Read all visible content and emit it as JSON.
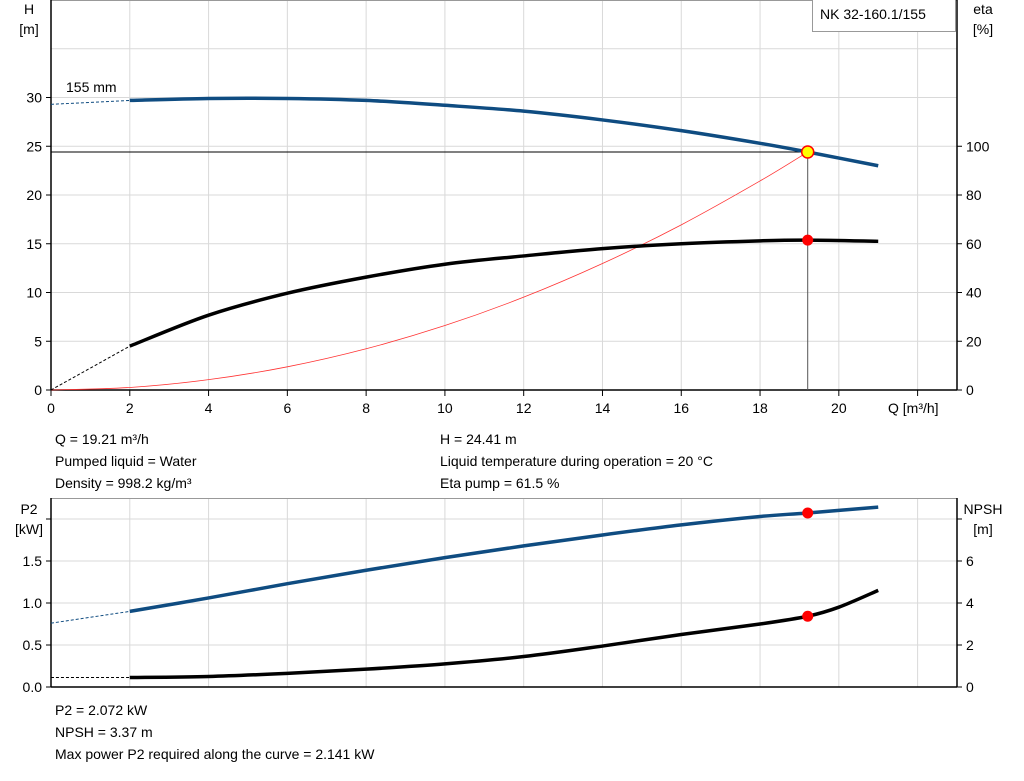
{
  "colors": {
    "head": "#0f4c81",
    "efficiency": "#000000",
    "system": "#ff3333",
    "power": "#0f4c81",
    "npsh": "#000000",
    "marker": "#ff0000",
    "op_marker_fill": "#ffff00",
    "grid": "#d9d9d9"
  },
  "chart_data": [
    {
      "type": "line",
      "legend": "NK 32-160.1/155",
      "curve_label": "155 mm",
      "xlabel": "Q [m³/h]",
      "ylabel_left": [
        "H",
        "[m]"
      ],
      "ylabel_right": [
        "eta",
        "[%]"
      ],
      "xlim": [
        0,
        23
      ],
      "ylim_left": [
        0,
        40
      ],
      "ylim_right": [
        0,
        160
      ],
      "x_ticks": [
        "0",
        "2",
        "4",
        "6",
        "8",
        "10",
        "12",
        "14",
        "16",
        "18",
        "20"
      ],
      "y_ticks_left": [
        "0",
        "5",
        "10",
        "15",
        "20",
        "25",
        "30"
      ],
      "y_ticks_right": [
        "0",
        "20",
        "40",
        "60",
        "80",
        "100"
      ],
      "grid": true,
      "series": [
        {
          "key": "head",
          "axis": "left",
          "dashed_to": 2,
          "x": [
            0,
            2,
            4,
            6,
            8,
            10,
            12,
            14,
            16,
            18,
            19.21,
            21
          ],
          "y": [
            29.3,
            29.7,
            29.9,
            29.9,
            29.7,
            29.2,
            28.6,
            27.7,
            26.6,
            25.3,
            24.41,
            23.0
          ]
        },
        {
          "key": "efficiency",
          "axis": "right",
          "dashed_to": 2,
          "x": [
            0,
            2,
            4,
            6,
            8,
            10,
            12,
            14,
            16,
            18,
            19.21,
            21
          ],
          "y": [
            0,
            18,
            30.7,
            39.7,
            46.3,
            51.6,
            55,
            58,
            60,
            61.2,
            61.5,
            61
          ]
        },
        {
          "key": "system",
          "axis": "left",
          "x": [
            0,
            2,
            4,
            6,
            8,
            10,
            12,
            14,
            16,
            18,
            19.21
          ],
          "y": [
            0,
            0.26,
            1.06,
            2.38,
            4.23,
            6.61,
            9.52,
            12.97,
            16.94,
            21.44,
            24.41
          ]
        }
      ],
      "operating_point": {
        "Q": 19.21,
        "H": 24.41,
        "eta": 61.5
      }
    },
    {
      "type": "line",
      "ylabel_left": [
        "P2",
        "[kW]"
      ],
      "ylabel_right": [
        "NPSH",
        "[m]"
      ],
      "xlim": [
        0,
        23
      ],
      "ylim_left": [
        0,
        2.25
      ],
      "ylim_right": [
        0,
        9
      ],
      "y_ticks_left": [
        "0.0",
        "0.5",
        "1.0",
        "1.5"
      ],
      "y_ticks_right": [
        "0",
        "2",
        "4",
        "6"
      ],
      "grid": true,
      "series": [
        {
          "key": "power",
          "axis": "left",
          "dashed_to": 2,
          "x": [
            0,
            2,
            4,
            6,
            8,
            10,
            12,
            14,
            16,
            18,
            19.21,
            21
          ],
          "y": [
            0.76,
            0.9,
            1.06,
            1.23,
            1.39,
            1.54,
            1.68,
            1.81,
            1.93,
            2.03,
            2.072,
            2.141
          ]
        },
        {
          "key": "npsh",
          "axis": "right",
          "dashed_to": 2,
          "x": [
            0,
            2,
            4,
            6,
            8,
            10,
            12,
            14,
            16,
            18,
            19.21,
            20,
            21
          ],
          "y": [
            0.45,
            0.45,
            0.5,
            0.65,
            0.85,
            1.1,
            1.45,
            1.95,
            2.5,
            3.0,
            3.37,
            3.8,
            4.6
          ]
        }
      ],
      "operating_point": {
        "Q": 19.21,
        "P2": 2.072,
        "NPSH": 3.37
      }
    }
  ],
  "info_top": {
    "q": "Q = 19.21 m³/h",
    "liquid": "Pumped liquid = Water",
    "density": "Density = 998.2 kg/m³",
    "h": "H = 24.41 m",
    "temp": "Liquid temperature during operation = 20 °C",
    "eta": "Eta pump = 61.5 %"
  },
  "info_bottom": {
    "p2": "P2 = 2.072 kW",
    "npsh": "NPSH = 3.37 m",
    "maxp2": "Max power P2 required along the curve = 2.141 kW"
  }
}
